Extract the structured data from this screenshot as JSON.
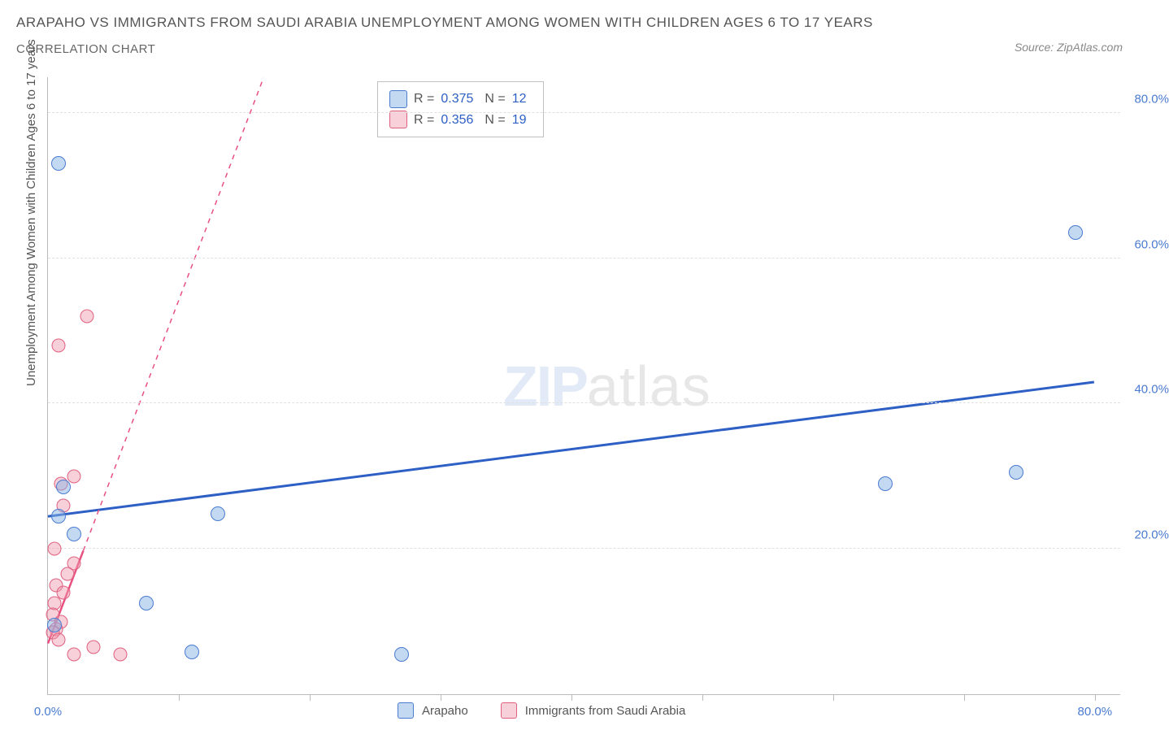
{
  "title": "ARAPAHO VS IMMIGRANTS FROM SAUDI ARABIA UNEMPLOYMENT AMONG WOMEN WITH CHILDREN AGES 6 TO 17 YEARS",
  "subtitle": "CORRELATION CHART",
  "source": "Source: ZipAtlas.com",
  "ylabel": "Unemployment Among Women with Children Ages 6 to 17 years",
  "watermark_zip": "ZIP",
  "watermark_atlas": "atlas",
  "chart": {
    "type": "scatter",
    "xlim": [
      0,
      82
    ],
    "ylim": [
      0,
      85
    ],
    "yticks": [
      20,
      40,
      60,
      80
    ],
    "ytick_labels": [
      "20.0%",
      "40.0%",
      "60.0%",
      "80.0%"
    ],
    "xticks": [
      10,
      20,
      30,
      40,
      50,
      60,
      70,
      80
    ],
    "xlabel_min": "0.0%",
    "xlabel_max": "80.0%",
    "background_color": "#ffffff",
    "grid_color": "#e0e0e0",
    "axis_color": "#bbbbbb",
    "series": [
      {
        "name": "Arapaho",
        "color_fill": "rgba(136,179,230,0.5)",
        "color_stroke": "#4a7bd0",
        "marker_size": 18,
        "R": "0.375",
        "N": "12",
        "points": [
          {
            "x": 0.8,
            "y": 73
          },
          {
            "x": 78.5,
            "y": 63.5
          },
          {
            "x": 1.2,
            "y": 28.5
          },
          {
            "x": 64,
            "y": 29
          },
          {
            "x": 74,
            "y": 30.5
          },
          {
            "x": 0.8,
            "y": 24.5
          },
          {
            "x": 13,
            "y": 24.8
          },
          {
            "x": 2.0,
            "y": 22
          },
          {
            "x": 7.5,
            "y": 12.5
          },
          {
            "x": 0.5,
            "y": 9.5
          },
          {
            "x": 11,
            "y": 5.8
          },
          {
            "x": 27,
            "y": 5.5
          }
        ],
        "trend": {
          "x1": 0,
          "y1": 24.5,
          "x2": 80,
          "y2": 43,
          "dashed": false,
          "stroke": "#2d5fc4",
          "width": 3
        }
      },
      {
        "name": "Immigrants from Saudi Arabia",
        "color_fill": "rgba(240,150,170,0.45)",
        "color_stroke": "#e06080",
        "marker_size": 17,
        "R": "0.356",
        "N": "19",
        "points": [
          {
            "x": 3.0,
            "y": 52
          },
          {
            "x": 0.8,
            "y": 48
          },
          {
            "x": 2.0,
            "y": 30
          },
          {
            "x": 1.0,
            "y": 29
          },
          {
            "x": 1.2,
            "y": 26
          },
          {
            "x": 0.5,
            "y": 20
          },
          {
            "x": 2.0,
            "y": 18
          },
          {
            "x": 1.5,
            "y": 16.5
          },
          {
            "x": 0.6,
            "y": 15
          },
          {
            "x": 1.2,
            "y": 14
          },
          {
            "x": 0.5,
            "y": 12.5
          },
          {
            "x": 0.4,
            "y": 11
          },
          {
            "x": 1.0,
            "y": 10
          },
          {
            "x": 0.6,
            "y": 9
          },
          {
            "x": 0.4,
            "y": 8.5
          },
          {
            "x": 0.8,
            "y": 7.5
          },
          {
            "x": 3.5,
            "y": 6.5
          },
          {
            "x": 2.0,
            "y": 5.5
          },
          {
            "x": 5.5,
            "y": 5.5
          }
        ],
        "trend": {
          "x1": 0,
          "y1": 7,
          "x2": 16.5,
          "y2": 85,
          "dashed_from_x": 2.7,
          "stroke": "#e85080",
          "width": 2.5
        }
      }
    ]
  },
  "stats_box": {
    "rows": [
      {
        "swatch": "blue",
        "R_label": "R =",
        "R_val": "0.375",
        "N_label": "N =",
        "N_val": "12"
      },
      {
        "swatch": "pink",
        "R_label": "R =",
        "R_val": "0.356",
        "N_label": "N =",
        "N_val": "19"
      }
    ]
  },
  "legend": {
    "items": [
      {
        "swatch": "blue",
        "label": "Arapaho"
      },
      {
        "swatch": "pink",
        "label": "Immigrants from Saudi Arabia"
      }
    ]
  }
}
